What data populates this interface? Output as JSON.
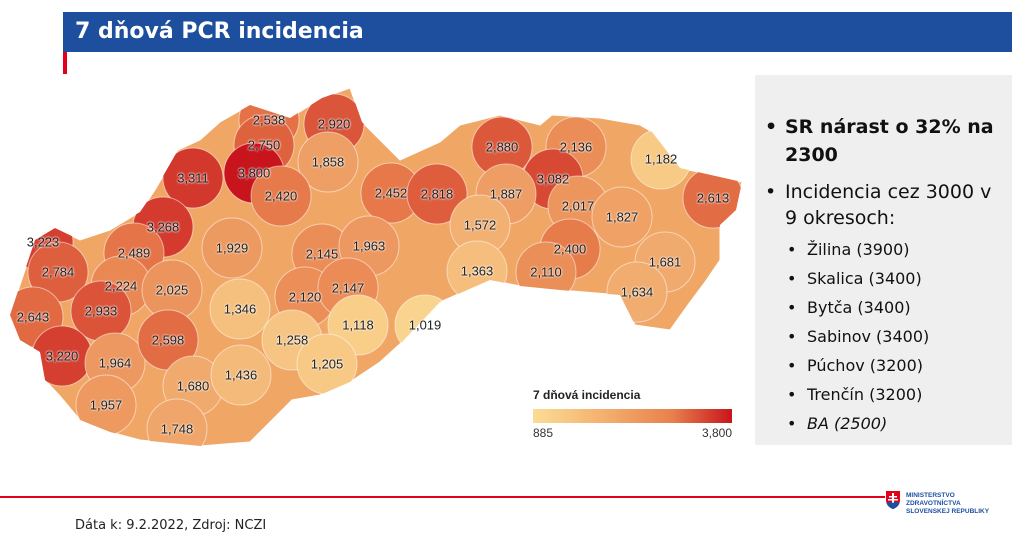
{
  "header": {
    "title": "7 dňová PCR incidencia"
  },
  "map": {
    "values": [
      2538,
      2920,
      2750,
      3800,
      1858,
      3311,
      2420,
      2452,
      2818,
      2880,
      2136,
      1182,
      3082,
      1887,
      2017,
      2613,
      1827,
      1572,
      3268,
      3223,
      2489,
      1929,
      2145,
      1963,
      2784,
      2224,
      2025,
      2400,
      1363,
      2110,
      1681,
      1634,
      2643,
      2933,
      1346,
      2120,
      2147,
      1118,
      1019,
      3220,
      1964,
      2598,
      1258,
      1205,
      1680,
      1436,
      1957,
      1748
    ],
    "labels": [
      "2,538",
      "2,920",
      "2,750",
      "3,800",
      "1,858",
      "3,311",
      "2,420",
      "2,452",
      "2,818",
      "2,880",
      "2,136",
      "1,182",
      "3,082",
      "1,887",
      "2,017",
      "2,613",
      "1,827",
      "1,572",
      "3,268",
      "3,223",
      "2,489",
      "1,929",
      "2,145",
      "1,963",
      "2,784",
      "2,224",
      "2,025",
      "2,400",
      "1,363",
      "2,110",
      "1,681",
      "1,634",
      "2,643",
      "2,933",
      "1,346",
      "2,120",
      "2,147",
      "1,118",
      "1,019",
      "3,220",
      "1,964",
      "2,598",
      "1,258",
      "1,205",
      "1,680",
      "1,436",
      "1,957",
      "1,748"
    ],
    "legend": {
      "title": "7 dňová incidencia",
      "min": 885,
      "max": 3800,
      "min_label": "885",
      "max_label": "3,800"
    },
    "colors": {
      "low": "#fbdd95",
      "mid": "#e8804d",
      "high": "#c8141c"
    }
  },
  "panel": {
    "bullet1": "SR nárast o 32% na 2300",
    "bullet2": "Incidencia cez 3000 v 9 okresoch:",
    "items": [
      "Žilina (3900)",
      "Skalica (3400)",
      "Bytča (3400)",
      "Sabinov (3400)",
      "Púchov (3200)",
      "Trenčín (3200)",
      "BA (2500)"
    ]
  },
  "footer": {
    "source": "Dáta k: 9.2.2022, Zdroj: NCZI"
  },
  "logo": {
    "line1": "MINISTERSTVO",
    "line2": "ZDRAVOTNÍCTVA",
    "line3": "SLOVENSKEJ REPUBLIKY"
  },
  "colors": {
    "header": "#1d4f9e",
    "accent": "#e3001b",
    "panel": "#efefef"
  }
}
